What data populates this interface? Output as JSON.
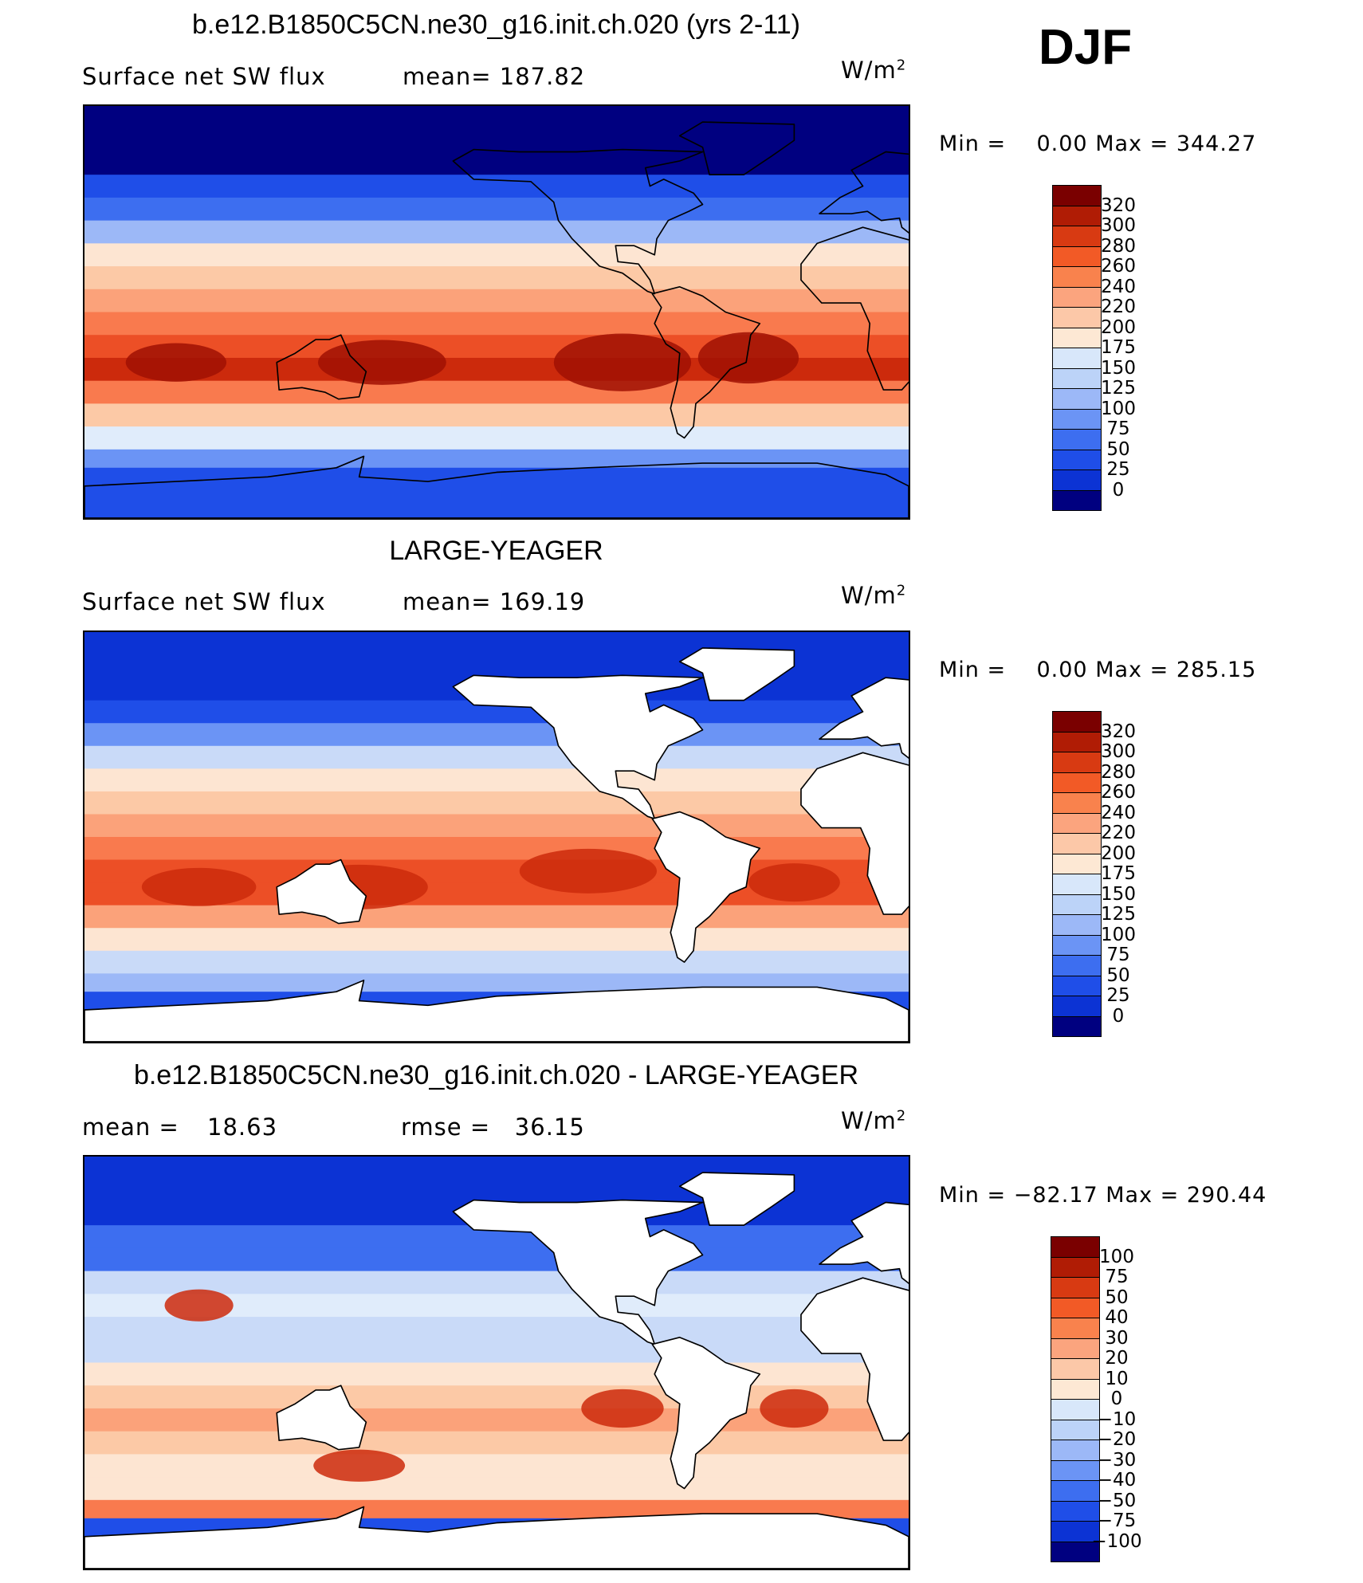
{
  "season": "DJF",
  "panels": [
    {
      "id": "model",
      "title": "b.e12.B1850C5CN.ne30_g16.init.ch.020 (yrs 2-11)",
      "left_label": "Surface net SW flux",
      "stat_label": "mean=",
      "stat_value": "187.82",
      "stat2_label": "",
      "stat2_value": "",
      "units": "W/m",
      "units_sup": "2",
      "min_label": "Min =",
      "min_value": "0.00",
      "max_label": "Max =",
      "max_value": "344.27",
      "land_masked": false,
      "colorbar_labels": [
        "320",
        "300",
        "280",
        "260",
        "240",
        "220",
        "200",
        "175",
        "150",
        "125",
        "100",
        "75",
        "50",
        "25",
        "0"
      ]
    },
    {
      "id": "obs",
      "title": "LARGE-YEAGER",
      "left_label": "Surface net SW flux",
      "stat_label": "mean=",
      "stat_value": "169.19",
      "stat2_label": "",
      "stat2_value": "",
      "units": "W/m",
      "units_sup": "2",
      "min_label": "Min =",
      "min_value": "0.00",
      "max_label": "Max =",
      "max_value": "285.15",
      "land_masked": true,
      "colorbar_labels": [
        "320",
        "300",
        "280",
        "260",
        "240",
        "220",
        "200",
        "175",
        "150",
        "125",
        "100",
        "75",
        "50",
        "25",
        "0"
      ]
    },
    {
      "id": "diff",
      "title": "b.e12.B1850C5CN.ne30_g16.init.ch.020 - LARGE-YEAGER",
      "left_label": "mean =",
      "stat_label": "",
      "stat_value": "18.63",
      "stat2_label": "rmse =",
      "stat2_value": "36.15",
      "units": "W/m",
      "units_sup": "2",
      "min_label": "Min =",
      "min_value": "−82.17",
      "max_label": "Max =",
      "max_value": "290.44",
      "land_masked": true,
      "colorbar_labels": [
        "100",
        "75",
        "50",
        "40",
        "30",
        "20",
        "10",
        "0",
        "−10",
        "−20",
        "−30",
        "−40",
        "−50",
        "−75",
        "−100"
      ]
    }
  ],
  "colors": {
    "ramp": [
      "#000080",
      "#0a1fb0",
      "#0c33d4",
      "#1f4ee8",
      "#3d6ef0",
      "#6b94f5",
      "#9cb8f7",
      "#c9daf8",
      "#e0ecfb",
      "#fde5d2",
      "#fcc9a6",
      "#fba27a",
      "#f97a4e",
      "#ec4f26",
      "#cc2a0c",
      "#a01003",
      "#7a0000"
    ],
    "colorbar": [
      "#7a0000",
      "#b01c05",
      "#d83a12",
      "#f25a26",
      "#f9824d",
      "#fba47e",
      "#fcc8a8",
      "#fde8d4",
      "#d8e7fa",
      "#bcd3f8",
      "#9cb8f7",
      "#6b94f5",
      "#3d6ef0",
      "#1f4ee8",
      "#0c33d4",
      "#000080"
    ],
    "land": "#ffffff",
    "coast": "#000000"
  },
  "chart_data": [
    {
      "type": "heatmap",
      "title": "b.e12.B1850C5CN.ne30_g16.init.ch.020 (yrs 2-11)",
      "variable": "Surface net SW flux",
      "units": "W/m2",
      "mean": 187.82,
      "min": 0.0,
      "max": 344.27,
      "colorbar_levels": [
        0,
        25,
        50,
        75,
        100,
        125,
        150,
        175,
        200,
        220,
        240,
        260,
        280,
        300,
        320
      ]
    },
    {
      "type": "heatmap",
      "title": "LARGE-YEAGER",
      "variable": "Surface net SW flux",
      "units": "W/m2",
      "mean": 169.19,
      "min": 0.0,
      "max": 285.15,
      "colorbar_levels": [
        0,
        25,
        50,
        75,
        100,
        125,
        150,
        175,
        200,
        220,
        240,
        260,
        280,
        300,
        320
      ]
    },
    {
      "type": "heatmap",
      "title": "b.e12.B1850C5CN.ne30_g16.init.ch.020 - LARGE-YEAGER",
      "units": "W/m2",
      "mean": 18.63,
      "rmse": 36.15,
      "min": -82.17,
      "max": 290.44,
      "colorbar_levels": [
        -100,
        -75,
        -50,
        -40,
        -30,
        -20,
        -10,
        0,
        10,
        20,
        30,
        40,
        50,
        75,
        100
      ]
    }
  ]
}
